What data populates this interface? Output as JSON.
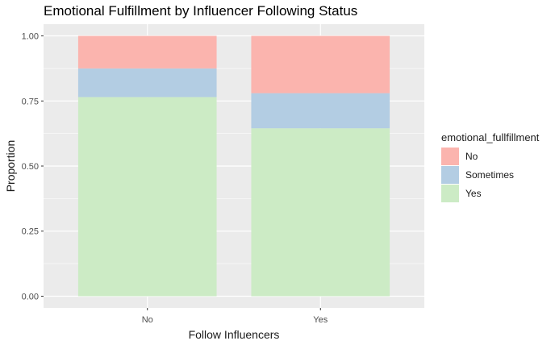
{
  "chart_data": {
    "type": "bar",
    "stacked": true,
    "title": "Emotional Fulfillment by Influencer Following Status",
    "xlabel": "Follow Influencers",
    "ylabel": "Proportion",
    "categories": [
      "No",
      "Yes"
    ],
    "ylim": [
      0,
      1
    ],
    "yticks": [
      0,
      0.25,
      0.5,
      0.75,
      1
    ],
    "ytick_labels": [
      "0.00",
      "0.25",
      "0.50",
      "0.75",
      "1.00"
    ],
    "grid": true,
    "legend": {
      "title": "emotional_fullfillment",
      "placement": "right"
    },
    "series": [
      {
        "name": "Yes",
        "values": [
          0.765,
          0.645
        ],
        "color": "#CCEBC5"
      },
      {
        "name": "Sometimes",
        "values": [
          0.11,
          0.135
        ],
        "color": "#B3CDE3"
      },
      {
        "name": "No",
        "values": [
          0.125,
          0.22
        ],
        "color": "#FBB4AE"
      }
    ],
    "legend_order": [
      "No",
      "Sometimes",
      "Yes"
    ],
    "colors": {
      "panel_background": "#EBEBEB",
      "grid_major": "#FFFFFF",
      "tick": "#333333"
    }
  }
}
